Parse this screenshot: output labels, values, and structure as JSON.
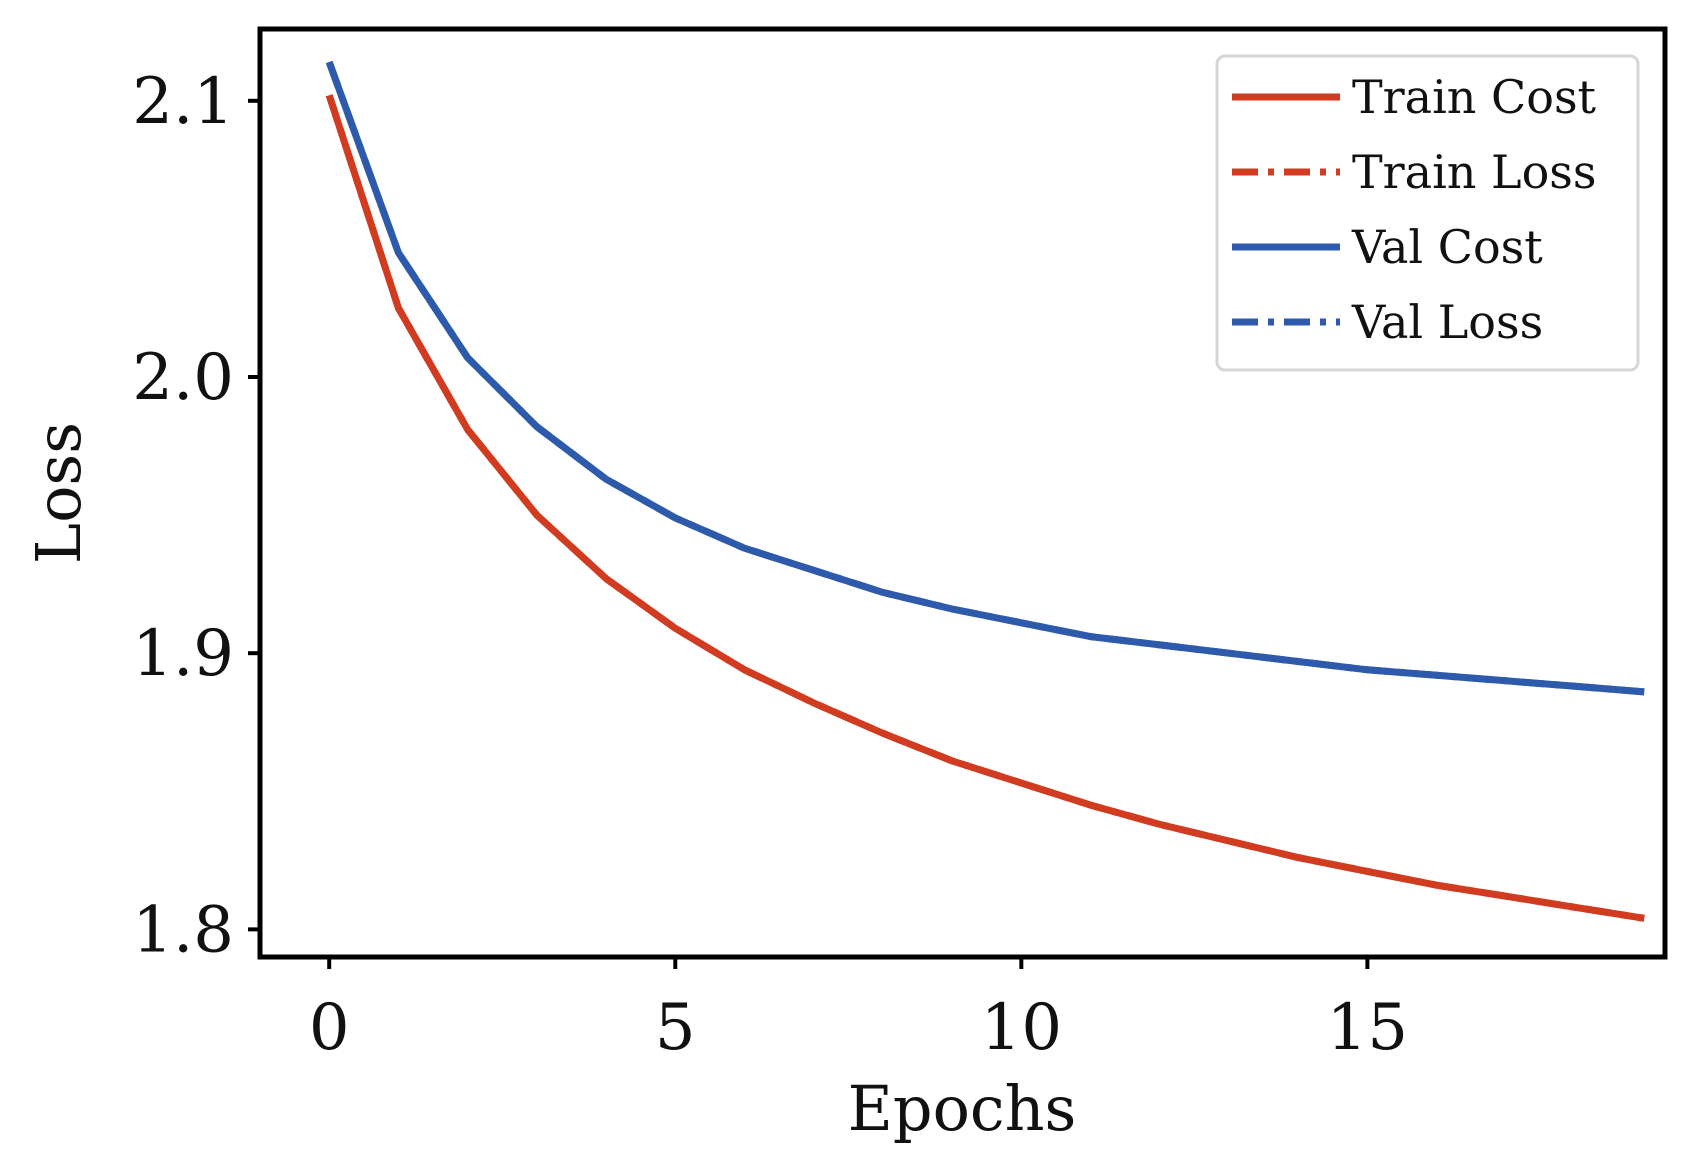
{
  "chart_data": {
    "type": "line",
    "title": "",
    "xlabel": "Epochs",
    "ylabel": "Loss",
    "xlim": [
      -1,
      19.3
    ],
    "ylim": [
      1.79,
      2.126
    ],
    "x_ticks": [
      0,
      5,
      10,
      15
    ],
    "x_tick_labels": [
      "0",
      "5",
      "10",
      "15"
    ],
    "y_ticks": [
      1.8,
      1.9,
      2.0,
      2.1
    ],
    "y_tick_labels": [
      "1.8",
      "1.9",
      "2.0",
      "2.1"
    ],
    "grid": false,
    "legend_position": "top-right",
    "x": [
      0,
      1,
      2,
      3,
      4,
      5,
      6,
      7,
      8,
      9,
      10,
      11,
      12,
      13,
      14,
      15,
      16,
      17,
      18,
      19
    ],
    "series": [
      {
        "name": "Train Cost",
        "color": "#d13b1f",
        "style": "solid",
        "values": [
          2.102,
          2.025,
          1.981,
          1.95,
          1.927,
          1.909,
          1.894,
          1.882,
          1.871,
          1.861,
          1.853,
          1.845,
          1.838,
          1.832,
          1.826,
          1.821,
          1.816,
          1.812,
          1.808,
          1.804
        ]
      },
      {
        "name": "Train Loss",
        "color": "#d13b1f",
        "style": "dashdot",
        "values": [
          2.102,
          2.025,
          1.981,
          1.95,
          1.927,
          1.909,
          1.894,
          1.882,
          1.871,
          1.861,
          1.853,
          1.845,
          1.838,
          1.832,
          1.826,
          1.821,
          1.816,
          1.812,
          1.808,
          1.804
        ]
      },
      {
        "name": "Val Cost",
        "color": "#2e5aac",
        "style": "solid",
        "values": [
          2.114,
          2.045,
          2.007,
          1.982,
          1.963,
          1.949,
          1.938,
          1.93,
          1.922,
          1.916,
          1.911,
          1.906,
          1.903,
          1.9,
          1.897,
          1.894,
          1.892,
          1.89,
          1.888,
          1.886
        ]
      },
      {
        "name": "Val Loss",
        "color": "#2e5aac",
        "style": "dashdot",
        "values": [
          2.114,
          2.045,
          2.007,
          1.982,
          1.963,
          1.949,
          1.938,
          1.93,
          1.922,
          1.916,
          1.911,
          1.906,
          1.903,
          1.9,
          1.897,
          1.894,
          1.892,
          1.89,
          1.888,
          1.886
        ]
      }
    ]
  }
}
